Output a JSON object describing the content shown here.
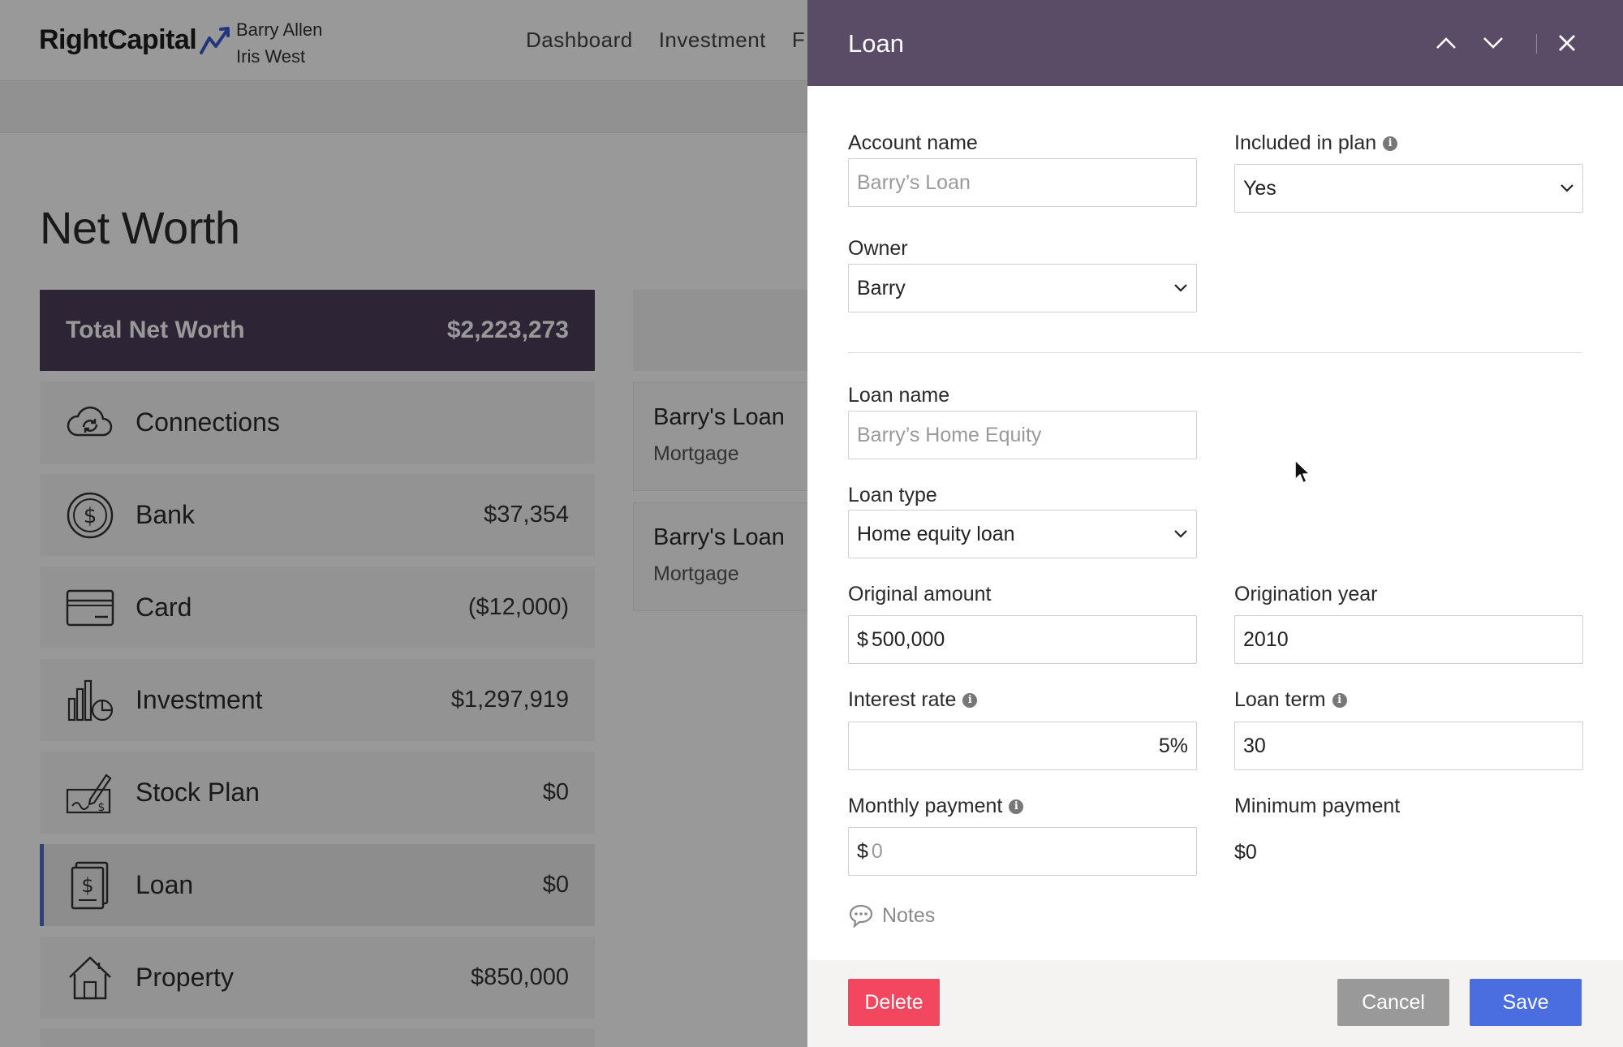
{
  "app": {
    "brand": "RightCapital",
    "clients": [
      "Barry Allen",
      "Iris West"
    ],
    "nav": [
      "Dashboard",
      "Investment",
      "F"
    ],
    "page_title": "Net Worth",
    "total": {
      "label": "Total Net Worth",
      "value": "$2,223,273"
    },
    "categories": [
      {
        "name": "Connections",
        "value": "",
        "icon": "cloud-sync-icon"
      },
      {
        "name": "Bank",
        "value": "$37,354",
        "icon": "dollar-coin-icon"
      },
      {
        "name": "Card",
        "value": "($12,000)",
        "icon": "credit-card-icon"
      },
      {
        "name": "Investment",
        "value": "$1,297,919",
        "icon": "bar-chart-pie-icon"
      },
      {
        "name": "Stock Plan",
        "value": "$0",
        "icon": "check-signature-icon"
      },
      {
        "name": "Loan",
        "value": "$0",
        "icon": "loan-document-icon"
      },
      {
        "name": "Property",
        "value": "$850,000",
        "icon": "house-icon"
      }
    ],
    "active_category": "Loan",
    "accounts": [
      {
        "name": "Barry's Loan",
        "type": "Mortgage"
      },
      {
        "name": "Barry's Loan",
        "type": "Mortgage"
      }
    ]
  },
  "panel": {
    "title": "Loan",
    "account_name": {
      "label": "Account name",
      "placeholder": "Barry’s Loan"
    },
    "included_in_plan": {
      "label": "Included in plan",
      "value": "Yes"
    },
    "owner": {
      "label": "Owner",
      "value": "Barry"
    },
    "loan_name": {
      "label": "Loan name",
      "placeholder": "Barry’s Home Equity"
    },
    "loan_type": {
      "label": "Loan type",
      "value": "Home equity loan"
    },
    "original_amount": {
      "label": "Original amount",
      "prefix": "$",
      "value": "500,000"
    },
    "origination_year": {
      "label": "Origination year",
      "value": "2010"
    },
    "interest_rate": {
      "label": "Interest rate",
      "value": "5%"
    },
    "loan_term": {
      "label": "Loan term",
      "value": "30"
    },
    "monthly_payment": {
      "label": "Monthly payment",
      "prefix": "$",
      "placeholder": "0"
    },
    "minimum_payment": {
      "label": "Minimum payment",
      "value": "$0"
    },
    "notes_label": "Notes",
    "buttons": {
      "delete": "Delete",
      "cancel": "Cancel",
      "save": "Save"
    }
  },
  "colors": {
    "header": "#5a4b66",
    "total_bar": "#4c3d5a",
    "delete": "#f3475f",
    "cancel": "#999999",
    "save": "#4a6ee0",
    "active_indicator": "#4c6bd6"
  }
}
